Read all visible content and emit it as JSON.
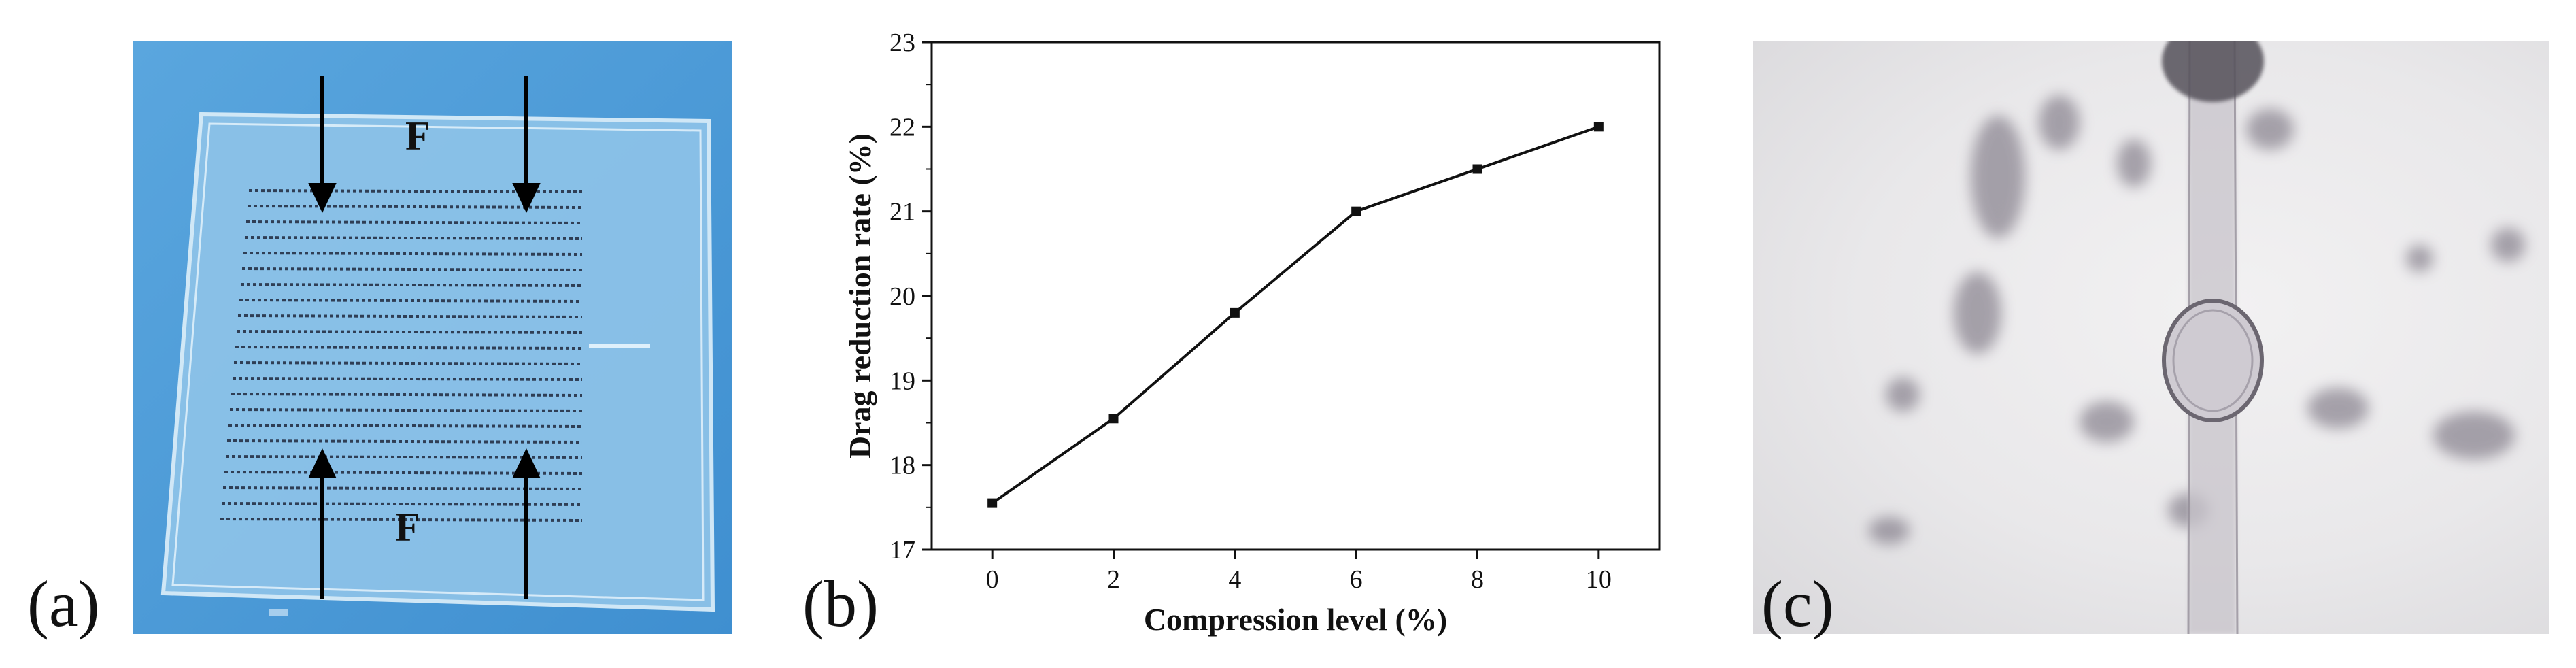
{
  "panels": {
    "a": {
      "label": "(a)",
      "force_label_top": "F",
      "force_label_bottom": "F"
    },
    "b": {
      "label": "(b)"
    },
    "c": {
      "label": "(c)"
    }
  },
  "chart_data": {
    "type": "line",
    "title": "",
    "xlabel": "Compression level (%)",
    "ylabel": "Drag reduction rate (%)",
    "x": [
      0,
      2,
      4,
      6,
      8,
      10
    ],
    "series": [
      {
        "values": [
          17.55,
          18.55,
          19.8,
          21.0,
          21.5,
          22.0
        ]
      }
    ],
    "xlim": [
      -1,
      11
    ],
    "ylim": [
      17,
      23
    ],
    "xticks": [
      0,
      2,
      4,
      6,
      8,
      10
    ],
    "yticks": [
      17,
      18,
      19,
      20,
      21,
      22,
      23
    ],
    "grid": false,
    "marker": "square",
    "line_color": "#111111"
  }
}
